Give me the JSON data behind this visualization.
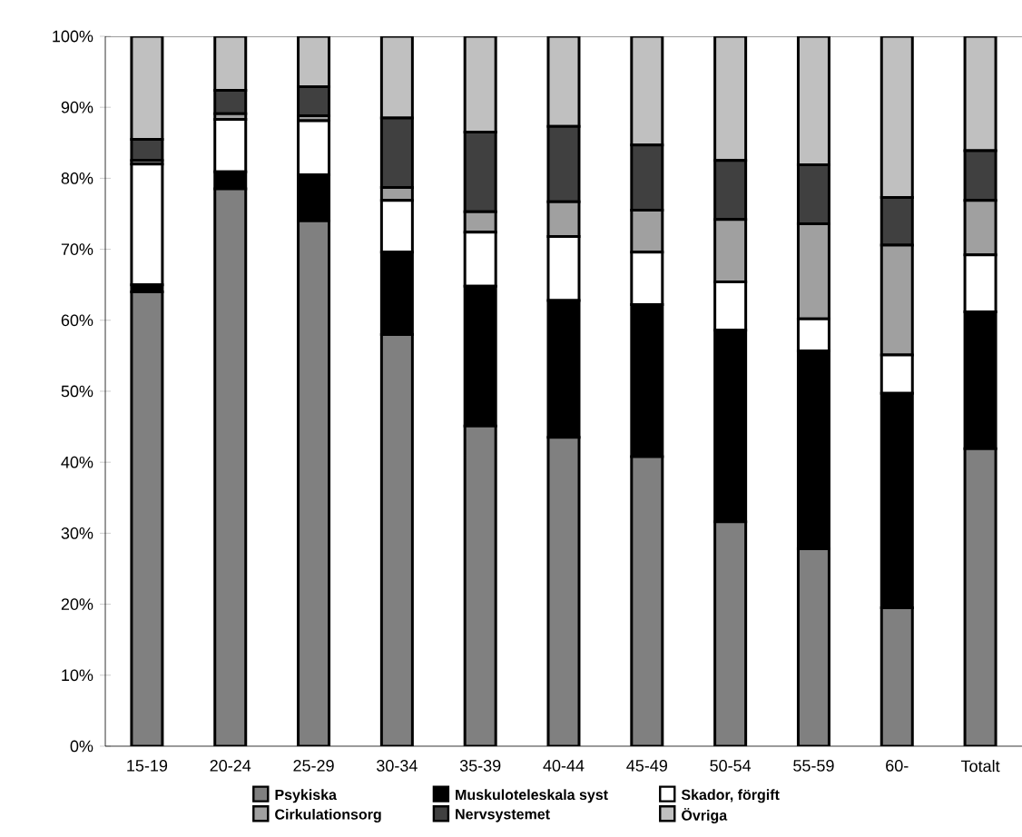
{
  "chart_data": {
    "type": "bar",
    "stacked": true,
    "categories": [
      "15-19",
      "20-24",
      "25-29",
      "30-34",
      "35-39",
      "40-44",
      "45-49",
      "50-54",
      "55-59",
      "60-",
      "Totalt"
    ],
    "series": [
      {
        "name": "Psykiska",
        "color": "#808080",
        "values": [
          64,
          78.5,
          74,
          58,
          45.1,
          43.5,
          40.8,
          31.6,
          27.8,
          19.5,
          41.9
        ]
      },
      {
        "name": "Muskuloteleskala syst",
        "color": "#000000",
        "values": [
          1,
          2.4,
          6.5,
          11.6,
          19.7,
          19.3,
          21.4,
          27,
          27.9,
          30.2,
          19.3
        ]
      },
      {
        "name": "Skador, förgift",
        "color": "#ffffff",
        "values": [
          17,
          7.4,
          7.6,
          7.3,
          7.6,
          9,
          7.4,
          6.8,
          4.5,
          5.4,
          8
        ]
      },
      {
        "name": "Cirkulationsorg",
        "color": "#a0a0a0",
        "values": [
          0.5,
          0.8,
          0.7,
          1.8,
          2.9,
          4.9,
          5.9,
          8.8,
          13.4,
          15.5,
          7.7
        ]
      },
      {
        "name": "Nervsystemet",
        "color": "#404040",
        "values": [
          3,
          3.3,
          4.1,
          9.8,
          11.2,
          10.6,
          9.2,
          8.3,
          8.3,
          6.7,
          7
        ]
      },
      {
        "name": "Övriga",
        "color": "#c0c0c0",
        "values": [
          14.5,
          7.6,
          7.1,
          11.5,
          13.5,
          12.7,
          15.3,
          17.5,
          18.1,
          22.7,
          16.1
        ]
      }
    ],
    "ylim": [
      0,
      100
    ],
    "yticks": [
      {
        "value": 0,
        "label": "0%"
      },
      {
        "value": 10,
        "label": "10%"
      },
      {
        "value": 20,
        "label": "20%"
      },
      {
        "value": 30,
        "label": "30%"
      },
      {
        "value": 40,
        "label": "40%"
      },
      {
        "value": 50,
        "label": "50%"
      },
      {
        "value": 60,
        "label": "60%"
      },
      {
        "value": 70,
        "label": "70%"
      },
      {
        "value": 80,
        "label": "80%"
      },
      {
        "value": 90,
        "label": "90%"
      },
      {
        "value": 100,
        "label": "100%"
      }
    ],
    "grid": false,
    "legend": "bottom"
  }
}
